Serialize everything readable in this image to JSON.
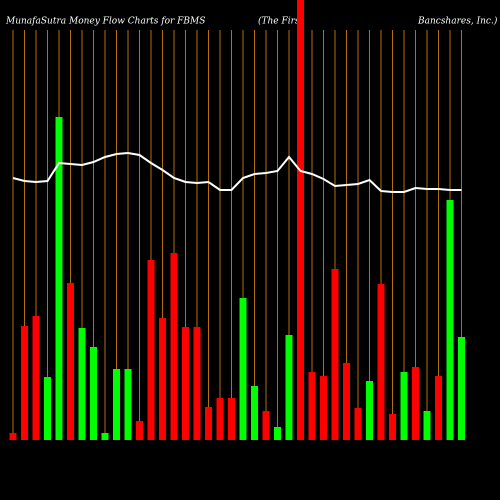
{
  "chart_data": {
    "type": "bar",
    "title": "MunafaSutra  Money Flow  Charts for FBMS",
    "title_parts": [
      "(The   First",
      "Bancshares,  Inc.)"
    ],
    "values": [
      7,
      114,
      124,
      63,
      323,
      157,
      112,
      93,
      7,
      71,
      71,
      19,
      180,
      122,
      187,
      113,
      113,
      33,
      42,
      42,
      142,
      54,
      29,
      13,
      105,
      440,
      68,
      64,
      171,
      77,
      32,
      59,
      156,
      26,
      68,
      73,
      29,
      64,
      240,
      103
    ],
    "colors": [
      "red",
      "red",
      "red",
      "lime",
      "lime",
      "red",
      "lime",
      "lime",
      "lime",
      "lime",
      "lime",
      "red",
      "red",
      "red",
      "red",
      "red",
      "red",
      "red",
      "red",
      "red",
      "lime",
      "lime",
      "red",
      "lime",
      "lime",
      "red",
      "red",
      "red",
      "red",
      "red",
      "red",
      "lime",
      "red",
      "red",
      "lime",
      "red",
      "lime",
      "red",
      "lime",
      "lime"
    ],
    "line_values": [
      262,
      259,
      258,
      259,
      277,
      276,
      275,
      278,
      283,
      286,
      287,
      285,
      277,
      270,
      262,
      258,
      257,
      258,
      250,
      250,
      262,
      266,
      267,
      269,
      283,
      269,
      266,
      261,
      254,
      255,
      256,
      260,
      249,
      248,
      248,
      252,
      251,
      251,
      250,
      250
    ],
    "line_color": "#ffffff",
    "gridline_color": "#b5700c"
  }
}
